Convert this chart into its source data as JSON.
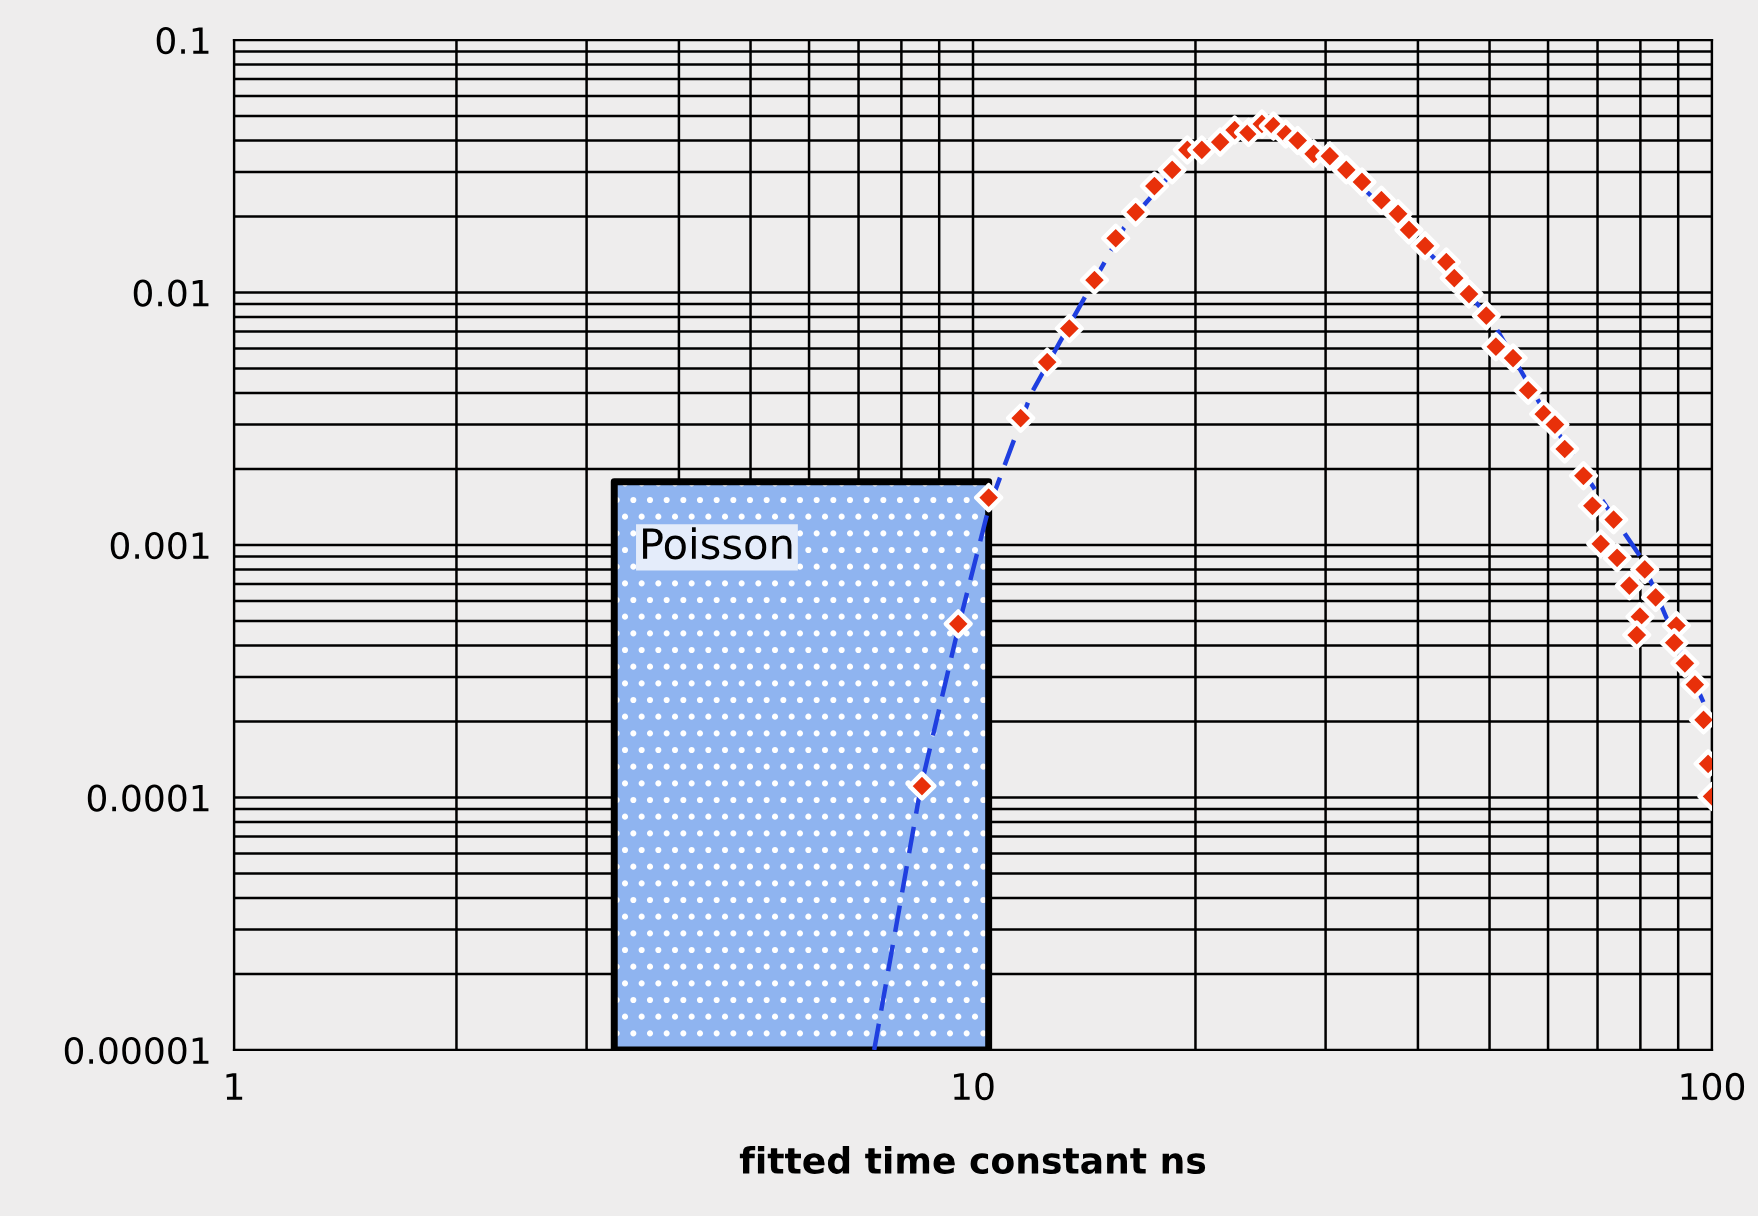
{
  "chart_data": {
    "type": "scatter",
    "xlabel": "fitted time constant ns",
    "log": "xy",
    "grid": true,
    "marker": "diamond",
    "xlim": [
      1,
      100
    ],
    "ylim": [
      1e-05,
      0.1
    ],
    "xticks": [
      {
        "value": 1,
        "label": "1"
      },
      {
        "value": 10,
        "label": "10"
      },
      {
        "value": 100,
        "label": "100"
      }
    ],
    "yticks": [
      {
        "value": 1e-05,
        "label": "0.00001"
      },
      {
        "value": 0.0001,
        "label": "0.0001"
      },
      {
        "value": 0.001,
        "label": "0.001"
      },
      {
        "value": 0.01,
        "label": "0.01"
      },
      {
        "value": 0.1,
        "label": "0.1"
      }
    ],
    "series": [
      {
        "name": "Poisson",
        "type": "area",
        "marker": "none",
        "color": "#8fb4f0",
        "x": [
          3.27,
          10.5
        ],
        "values": [
          0.00178,
          0.00178
        ]
      },
      {
        "type": "line",
        "color": "#1f3fe0",
        "line_style": "dashed",
        "marker": "none",
        "x": [
          7.35,
          8.5,
          9.6,
          10.5,
          12,
          14,
          16,
          19,
          22,
          25,
          30,
          40,
          50,
          60,
          70,
          80,
          90,
          100
        ],
        "values": [
          1e-05,
          0.00011,
          0.0005,
          0.0014,
          0.004,
          0.009,
          0.018,
          0.032,
          0.042,
          0.046,
          0.036,
          0.016,
          0.008,
          0.0032,
          0.0016,
          0.0009,
          0.0004,
          0.0002
        ]
      },
      {
        "color": "#e8300a",
        "x": [
          8.53,
          9.55,
          10.5,
          11.6,
          12.6,
          13.5,
          14.6,
          15.6,
          16.6,
          17.6,
          18.6,
          19.5,
          20.4,
          21.6,
          22.6,
          23.6,
          24.6,
          25.5,
          26.5,
          27.5,
          28.9,
          30.4,
          32.0,
          33.6,
          35.7,
          37.6,
          38.9,
          40.9,
          43.7,
          44.8,
          46.9,
          49.5,
          51.0,
          53.8,
          56.4,
          59.2,
          61.3,
          63.2,
          67.0,
          68.9,
          73.6,
          70.7,
          74.4,
          81.1,
          77.3,
          83.9,
          79.9,
          89.5,
          79.1,
          88.9,
          91.9,
          94.8,
          97.4,
          98.8,
          100
        ],
        "values": [
          0.000111,
          0.000487,
          0.00154,
          0.00318,
          0.0053,
          0.0072,
          0.0112,
          0.0164,
          0.0208,
          0.0264,
          0.0306,
          0.0367,
          0.0367,
          0.0394,
          0.044,
          0.043,
          0.0465,
          0.0456,
          0.0424,
          0.04,
          0.0354,
          0.0347,
          0.0306,
          0.0274,
          0.0232,
          0.0205,
          0.0177,
          0.0153,
          0.0132,
          0.0114,
          0.00986,
          0.0081,
          0.0061,
          0.0055,
          0.0041,
          0.0033,
          0.003,
          0.0024,
          0.00188,
          0.00143,
          0.00126,
          0.00101,
          0.00089,
          0.0008,
          0.00069,
          0.00062,
          0.00052,
          0.00048,
          0.00044,
          0.00041,
          0.00034,
          0.00028,
          0.000203,
          0.000136,
          0.000101
        ]
      }
    ]
  }
}
